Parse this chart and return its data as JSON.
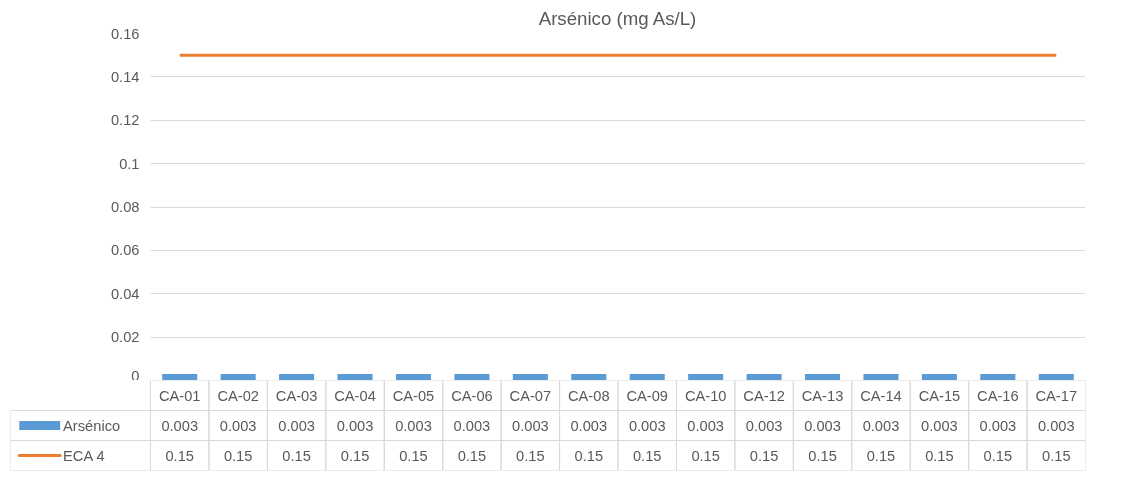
{
  "chart_data": {
    "type": "bar",
    "title": "Arsénico (mg As/L)",
    "categories": [
      "CA-01",
      "CA-02",
      "CA-03",
      "CA-04",
      "CA-05",
      "CA-06",
      "CA-07",
      "CA-08",
      "CA-09",
      "CA-10",
      "CA-12",
      "CA-13",
      "CA-14",
      "CA-15",
      "CA-16",
      "CA-17"
    ],
    "series": [
      {
        "name": "Arsénico",
        "color": "#5b9bd5",
        "values": [
          0.003,
          0.003,
          0.003,
          0.003,
          0.003,
          0.003,
          0.003,
          0.003,
          0.003,
          0.003,
          0.003,
          0.003,
          0.003,
          0.003,
          0.003,
          0.003
        ]
      },
      {
        "name": "ECA 4",
        "type": "line",
        "color": "#ed7d31",
        "values": [
          0.15,
          0.15,
          0.15,
          0.15,
          0.15,
          0.15,
          0.15,
          0.15,
          0.15,
          0.15,
          0.15,
          0.15,
          0.15,
          0.15,
          0.15,
          0.15
        ]
      }
    ],
    "ylim": [
      0,
      0.16
    ],
    "yticks": [
      0,
      0.02,
      0.04,
      0.06,
      0.08,
      0.1,
      0.12,
      0.14,
      0.16
    ],
    "grid": "y",
    "data_labels": true,
    "legend": "bottom"
  }
}
